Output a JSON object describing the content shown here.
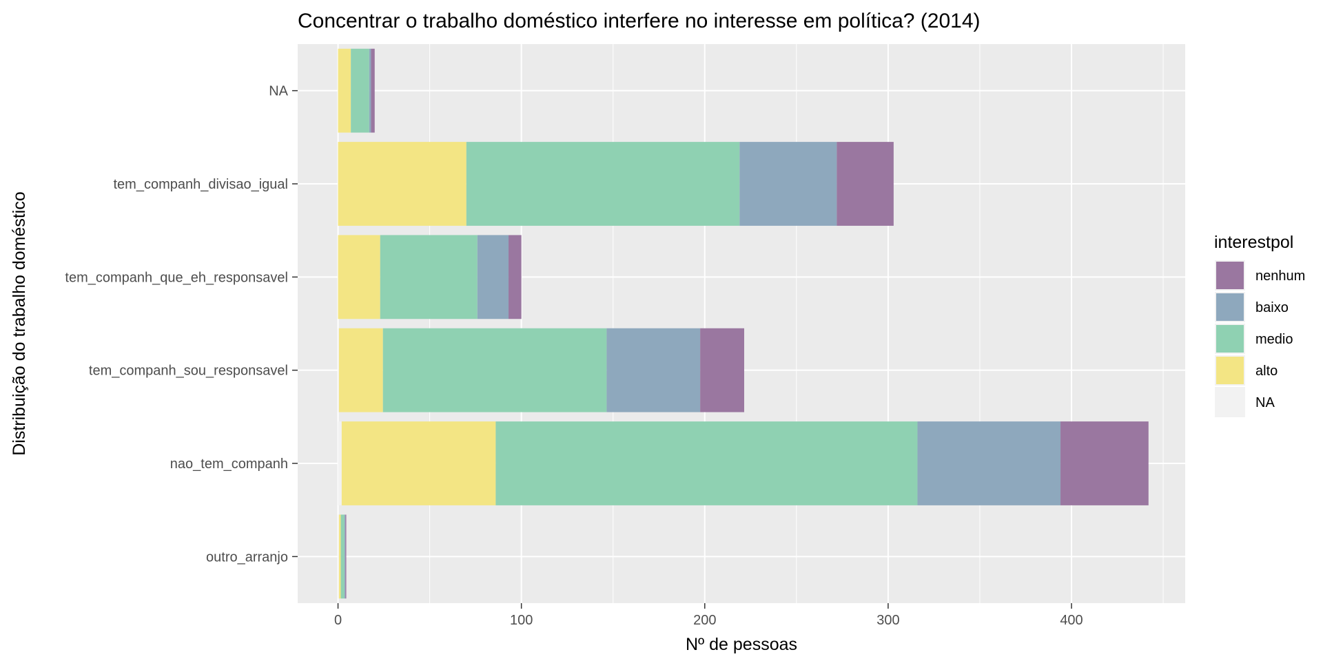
{
  "chart_data": {
    "type": "bar",
    "orientation": "horizontal",
    "stacked": true,
    "title": "Concentrar o trabalho doméstico interfere no interesse em política? (2014)",
    "xlabel": "Nº de pessoas",
    "ylabel": "Distribuição do trabalho doméstico",
    "xlim": [
      -22,
      462
    ],
    "x_ticks": [
      0,
      100,
      200,
      300,
      400
    ],
    "grid": true,
    "categories": [
      "NA",
      "tem_companh_divisao_igual",
      "tem_companh_que_eh_responsavel",
      "tem_companh_sou_responsavel",
      "nao_tem_companh",
      "outro_arranjo"
    ],
    "stack_order": [
      "NA",
      "alto",
      "medio",
      "baixo",
      "nenhum"
    ],
    "series": [
      {
        "name": "NA",
        "color": "#f2f2f2",
        "values": [
          0,
          0,
          0,
          0.5,
          2,
          0.5
        ]
      },
      {
        "name": "alto",
        "color": "#f3e584",
        "values": [
          7,
          70,
          23,
          24,
          84,
          1
        ]
      },
      {
        "name": "medio",
        "color": "#8fd1b2",
        "values": [
          10,
          149,
          53,
          122,
          230,
          2
        ]
      },
      {
        "name": "baixo",
        "color": "#8ea8bd",
        "values": [
          1,
          53,
          17,
          51,
          78,
          0.5
        ]
      },
      {
        "name": "nenhum",
        "color": "#9a77a0",
        "values": [
          2,
          31,
          7,
          24,
          48,
          0.5
        ]
      }
    ],
    "legend": {
      "title": "interestpol",
      "position": "right",
      "items": [
        {
          "name": "nenhum",
          "color": "#9a77a0"
        },
        {
          "name": "baixo",
          "color": "#8ea8bd"
        },
        {
          "name": "medio",
          "color": "#8fd1b2"
        },
        {
          "name": "alto",
          "color": "#f3e584"
        },
        {
          "name": "NA",
          "color": "#f2f2f2"
        }
      ]
    }
  }
}
